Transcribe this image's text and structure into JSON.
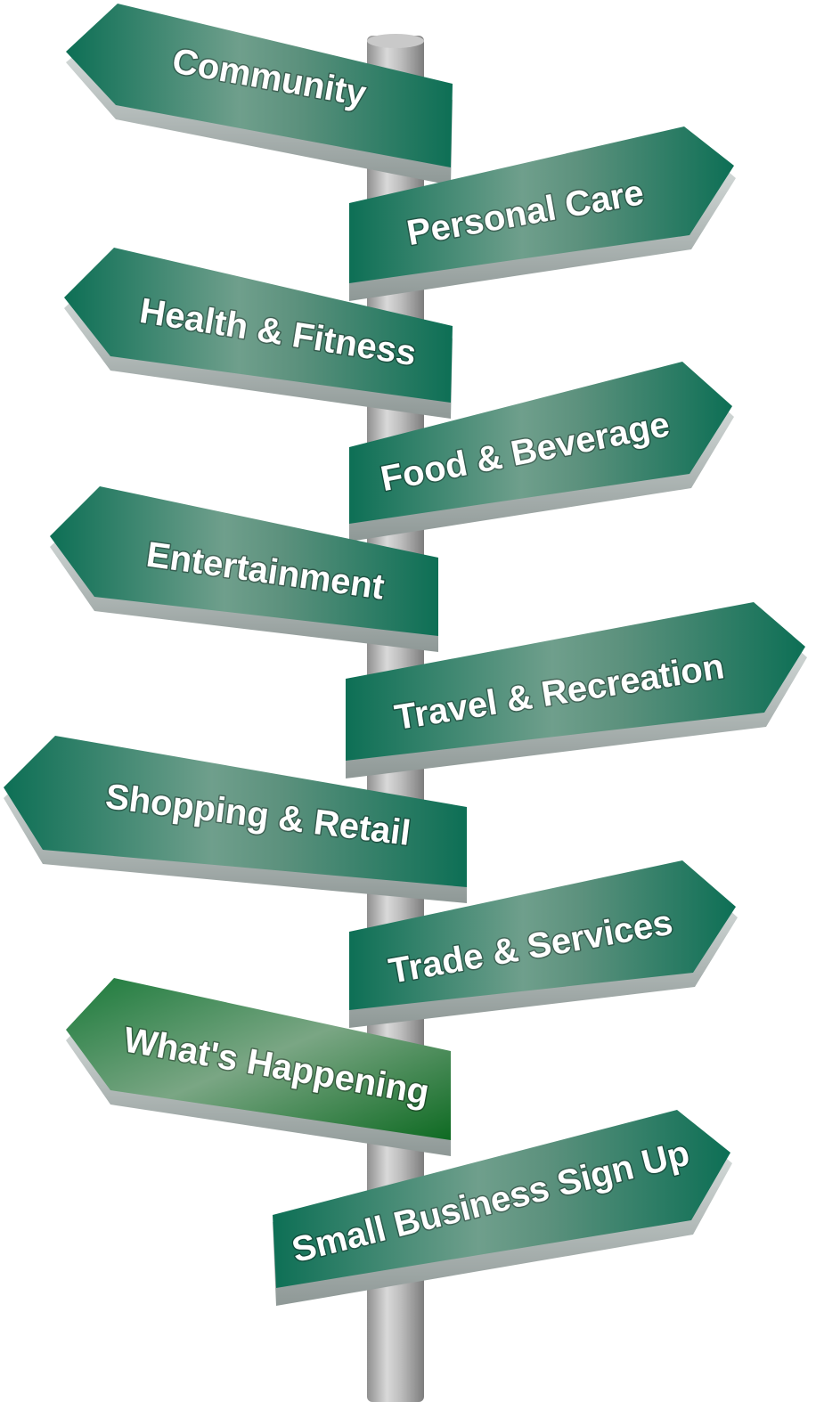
{
  "signs": [
    {
      "label": "Community"
    },
    {
      "label": "Personal Care"
    },
    {
      "label": "Health & Fitness"
    },
    {
      "label": "Food & Beverage"
    },
    {
      "label": "Entertainment"
    },
    {
      "label": "Travel & Recreation"
    },
    {
      "label": "Shopping & Retail"
    },
    {
      "label": "Trade & Services"
    },
    {
      "label": "What's Happening"
    },
    {
      "label": "Small Business Sign Up"
    }
  ],
  "colors": {
    "sign_green": "#0f7a5e",
    "sign_green_highlight": "#8fb5a5",
    "sign_edge": "#b9c2c0",
    "pole": "#b4b4b4"
  }
}
